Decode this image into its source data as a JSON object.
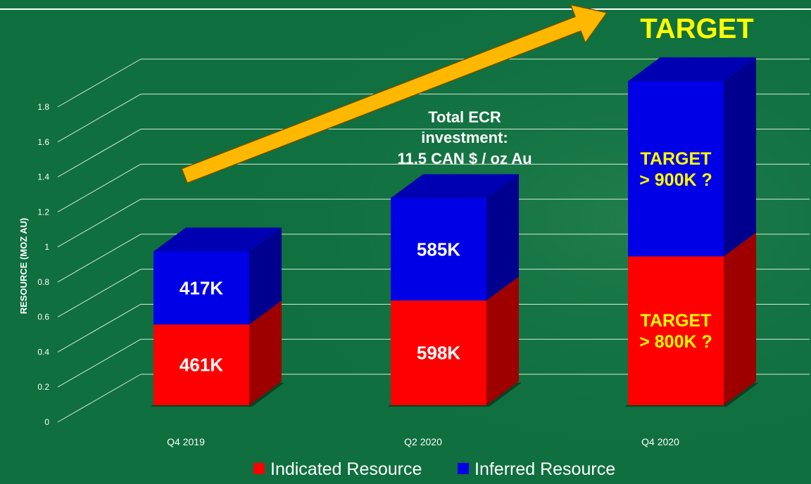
{
  "chart_data": {
    "type": "bar",
    "stacked": true,
    "three_d": true,
    "ylabel": "RESOURCE (MOZ AU)",
    "ylim": [
      0,
      1.8
    ],
    "yticks": [
      0,
      0.2,
      0.4,
      0.6,
      0.8,
      1,
      1.2,
      1.4,
      1.6,
      1.8
    ],
    "grid": true,
    "categories": [
      "Q4 2019",
      "Q2 2020",
      "Q4 2020"
    ],
    "series": [
      {
        "name": "Indicated Resource",
        "color": "#ff0000",
        "values": [
          0.461,
          0.598,
          0.85
        ],
        "labels": [
          "461K",
          "598K",
          "TARGET\n> 800K ?"
        ]
      },
      {
        "name": "Inferred Resource",
        "color": "#0000e6",
        "values": [
          0.417,
          0.585,
          1.0
        ],
        "labels": [
          "417K",
          "585K",
          "TARGET\n> 900K ?"
        ]
      }
    ],
    "legend_position": "bottom",
    "annotations": {
      "investment": [
        "Total ECR",
        "investment:",
        "11.5 CAN $ / oz Au"
      ],
      "target_heading": "TARGET"
    }
  },
  "colors": {
    "background": "#0f6f3f",
    "grid": "#d7ead9",
    "axis_text": "#ffffff",
    "target_text": "#ffff00",
    "arrow": "#ffb800"
  }
}
